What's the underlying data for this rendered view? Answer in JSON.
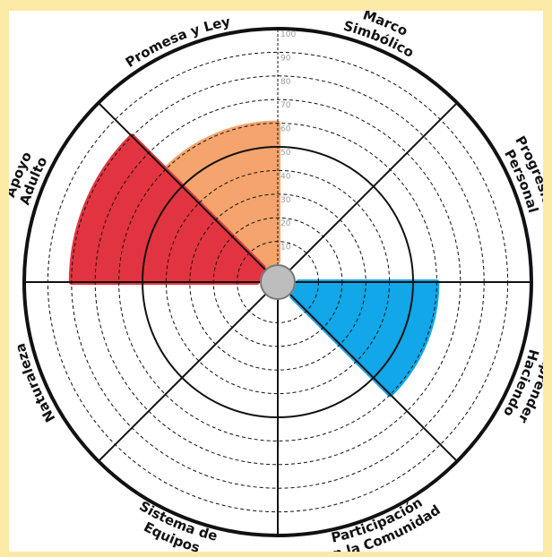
{
  "chart_data": {
    "type": "radial-sector",
    "title": "",
    "r_range": [
      0,
      100
    ],
    "r_ticks": [
      10,
      20,
      30,
      40,
      50,
      60,
      70,
      80,
      90,
      100
    ],
    "grid": true,
    "sectors": [
      {
        "lines": [
          "Marco",
          "Simbólico"
        ],
        "flip": false
      },
      {
        "lines": [
          "Progresión",
          "Personal"
        ],
        "flip": false
      },
      {
        "lines": [
          "Aprender",
          "Haciendo"
        ],
        "flip": false
      },
      {
        "lines": [
          "Participación",
          "en la Comunidad"
        ],
        "flip": true
      },
      {
        "lines": [
          "Sistema de",
          "Equipos"
        ],
        "flip": true
      },
      {
        "lines": [
          "Naturaleza"
        ],
        "flip": false
      },
      {
        "lines": [
          "Apoyo",
          "Adulto"
        ],
        "flip": false
      },
      {
        "lines": [
          "Promesa y Ley"
        ],
        "flip": false
      }
    ],
    "values": [
      {
        "sector": "Promesa y Ley",
        "value": 60,
        "color": "#f4a46c"
      },
      {
        "sector": "Apoyo Adulto",
        "value": 80,
        "color": "#e23440"
      },
      {
        "sector": "Aprender Haciendo",
        "value": 60,
        "color": "#11a7e8"
      }
    ]
  }
}
